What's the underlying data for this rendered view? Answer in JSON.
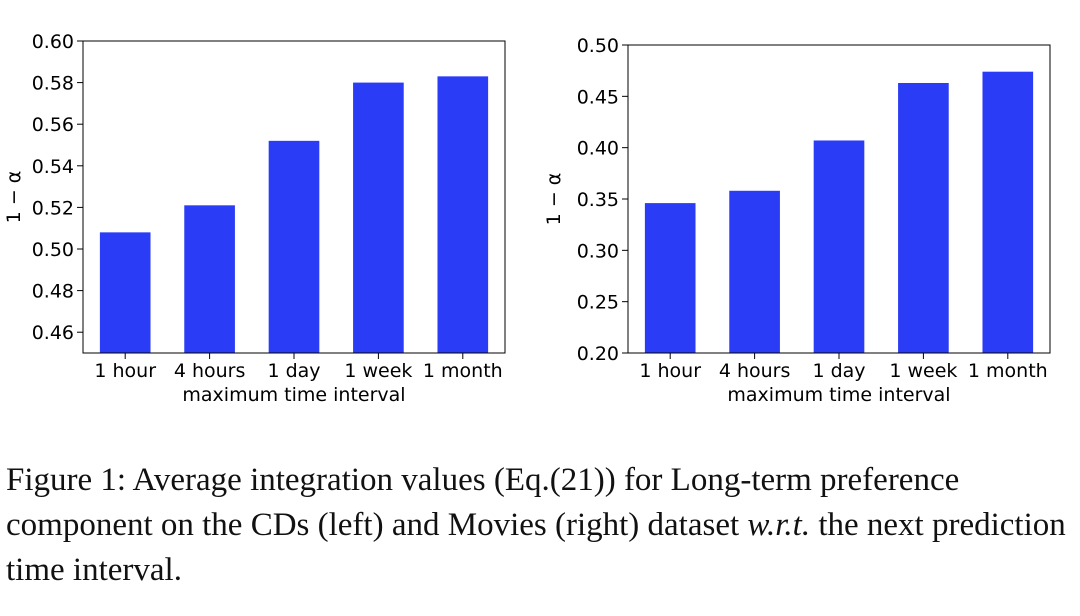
{
  "chart_data": [
    {
      "type": "bar",
      "categories": [
        "1 hour",
        "4 hours",
        "1 day",
        "1 week",
        "1 month"
      ],
      "values": [
        0.508,
        0.521,
        0.552,
        0.58,
        0.583
      ],
      "xlabel": "maximum time interval",
      "ylabel": "1 − α",
      "ylim": [
        0.45,
        0.6
      ],
      "yticks": [
        "0.46",
        "0.48",
        "0.50",
        "0.52",
        "0.54",
        "0.56",
        "0.58",
        "0.60"
      ],
      "color": "#2a3cf5",
      "grid": false
    },
    {
      "type": "bar",
      "categories": [
        "1 hour",
        "4 hours",
        "1 day",
        "1 week",
        "1 month"
      ],
      "values": [
        0.346,
        0.358,
        0.407,
        0.463,
        0.474
      ],
      "xlabel": "maximum time interval",
      "ylabel": "1 − α",
      "ylim": [
        0.2,
        0.5
      ],
      "yticks": [
        "0.20",
        "0.25",
        "0.30",
        "0.35",
        "0.40",
        "0.45",
        "0.50"
      ],
      "color": "#2a3cf5",
      "grid": false
    }
  ],
  "caption": {
    "prefix": "Figure 1: Average integration values (Eq.(21)) for Long-term preference component on the CDs (left) and Movies (right) dataset ",
    "math": "w.r.t.",
    "suffix": " the next prediction time interval."
  }
}
